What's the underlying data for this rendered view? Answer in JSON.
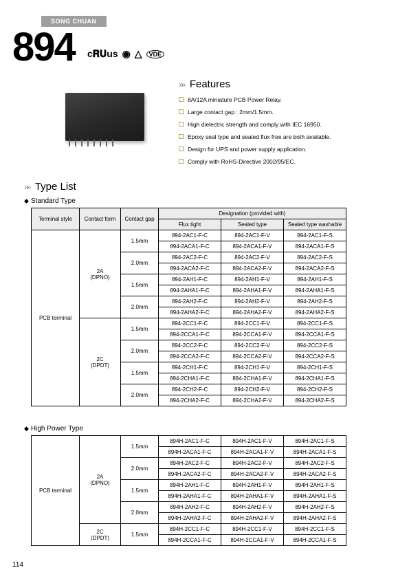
{
  "brand": "SONG CHUAN",
  "model_number": "894",
  "cert_labels": [
    "c𝐑𝐔us",
    "◉",
    "△",
    "VDE"
  ],
  "features": {
    "title": "Features",
    "items": [
      "8A/12A miniature PCB Power Relay.",
      "Large contact gap : 2mm/1.5mm.",
      "High dielectric strength and comply with IEC 16950.",
      "Epoxy seal type and sealed flux free are both available.",
      "Design for UPS and power supply application.",
      "Comply with RoHS-Directive 2002/95/EC."
    ]
  },
  "typelist": {
    "title": "Type List",
    "standard_label": "Standard Type",
    "highpower_label": "High Power Type",
    "headers": {
      "terminal": "Terminal style",
      "contact_form": "Contact form",
      "contact_gap": "Contact gap",
      "designation": "Designation (provided with)",
      "flux": "Flux tight",
      "sealed": "Sealed type",
      "sealed_wash": "Sealed type washable"
    },
    "terminal_value": "PCB terminal",
    "contact_forms": {
      "a": "2A",
      "a_sub": "(DPNO)",
      "c": "2C",
      "c_sub": "(DPDT)"
    },
    "gaps": {
      "g15": "1.5mm",
      "g20": "2.0mm"
    },
    "standard_rows": [
      [
        "894-2AC1-F-C",
        "894-2AC1-F-V",
        "894-2AC1-F-S"
      ],
      [
        "894-2ACA1-F-C",
        "894-2ACA1-F-V",
        "894-2ACA1-F-S"
      ],
      [
        "894-2AC2-F-C",
        "894-2AC2-F-V",
        "894-2AC2-F-S"
      ],
      [
        "894-2ACA2-F-C",
        "894-2ACA2-F-V",
        "894-2ACA2-F-S"
      ],
      [
        "894-2AH1-F-C",
        "894-2AH1-F-V",
        "894-2AH1-F-S"
      ],
      [
        "894-2AHA1-F-C",
        "894-2AHA1-F-V",
        "894-2AHA1-F-S"
      ],
      [
        "894-2AH2-F-C",
        "894-2AH2-F-V",
        "894-2AH2-F-S"
      ],
      [
        "894-2AHA2-F-C",
        "894-2AHA2-F-V",
        "894-2AHA2-F-S"
      ],
      [
        "894-2CC1-F-C",
        "894-2CC1-F-V",
        "894-2CC1-F-S"
      ],
      [
        "894-2CCA1-F-C",
        "894-2CCA1-F-V",
        "894-2CCA1-F-S"
      ],
      [
        "894-2CC2-F-C",
        "894-2CC2-F-V",
        "894-2CC2-F-S"
      ],
      [
        "894-2CCA2-F-C",
        "894-2CCA2-F-V",
        "894-2CCA2-F-S"
      ],
      [
        "894-2CH1-F-C",
        "894-2CH1-F-V",
        "894-2CH1-F-S"
      ],
      [
        "894-2CHA1-F-C",
        "894-2CHA1-F-V",
        "894-2CHA1-F-S"
      ],
      [
        "894-2CH2-F-C",
        "894-2CH2-F-V",
        "894-2CH2-F-S"
      ],
      [
        "894-2CHA2-F-C",
        "894-2CHA2-F-V",
        "894-2CHA2-F-S"
      ]
    ],
    "highpower_rows": [
      [
        "894H-2AC1-F-C",
        "894H-2AC1-F-V",
        "894H-2AC1-F-S"
      ],
      [
        "894H-2ACA1-F-C",
        "894H-2ACA1-F-V",
        "894H-2ACA1-F-S"
      ],
      [
        "894H-2AC2-F-C",
        "894H-2AC2-F-V",
        "894H-2AC2-F-S"
      ],
      [
        "894H-2ACA2-F-C",
        "894H-2ACA2-F-V",
        "894H-2ACA2-F-S"
      ],
      [
        "894H-2AH1-F-C",
        "894H-2AH1-F-V",
        "894H-2AH1-F-S"
      ],
      [
        "894H-2AHA1-F-C",
        "894H-2AHA1-F-V",
        "894H-2AHA1-F-S"
      ],
      [
        "894H-2AH2-F-C",
        "894H-2AH2-F-V",
        "894H-2AH2-F-S"
      ],
      [
        "894H-2AHA2-F-C",
        "894H-2AHA2-F-V",
        "894H-2AHA2-F-S"
      ],
      [
        "894H-2CC1-F-C",
        "894H-2CC1-F-V",
        "894H-2CC1-F-S"
      ],
      [
        "894H-2CCA1-F-C",
        "894H-2CCA1-F-V",
        "894H-2CCA1-F-S"
      ]
    ]
  },
  "page_number": "114"
}
